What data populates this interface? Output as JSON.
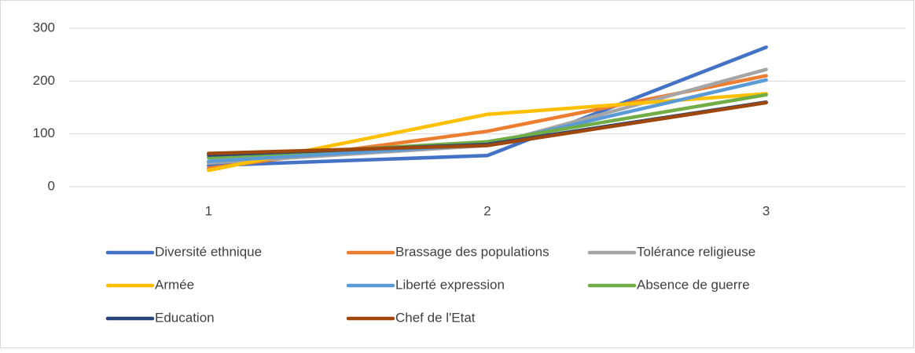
{
  "chart_data": {
    "type": "line",
    "categories": [
      "1",
      "2",
      "3"
    ],
    "series": [
      {
        "name": "Diversité ethnique",
        "color": "#4472c4",
        "values": [
          40,
          59,
          264
        ]
      },
      {
        "name": "Brassage des populations",
        "color": "#ed7d31",
        "values": [
          35,
          105,
          210
        ]
      },
      {
        "name": "Tolérance religieuse",
        "color": "#a5a5a5",
        "values": [
          45,
          78,
          222
        ]
      },
      {
        "name": "Armée",
        "color": "#ffc000",
        "values": [
          31,
          137,
          176
        ]
      },
      {
        "name": "Liberté expression",
        "color": "#5b9bd5",
        "values": [
          48,
          80,
          202
        ]
      },
      {
        "name": "Absence de guerre",
        "color": "#70ad47",
        "values": [
          55,
          85,
          174
        ]
      },
      {
        "name": "Education",
        "color": "#264478",
        "values": [
          60,
          80,
          160
        ]
      },
      {
        "name": "Chef de l'Etat",
        "color": "#9e480e",
        "values": [
          63,
          78,
          159
        ]
      }
    ],
    "ylim": [
      0,
      300
    ],
    "yticks": [
      0,
      100,
      200,
      300
    ],
    "grid": true,
    "legend": "bottom"
  }
}
